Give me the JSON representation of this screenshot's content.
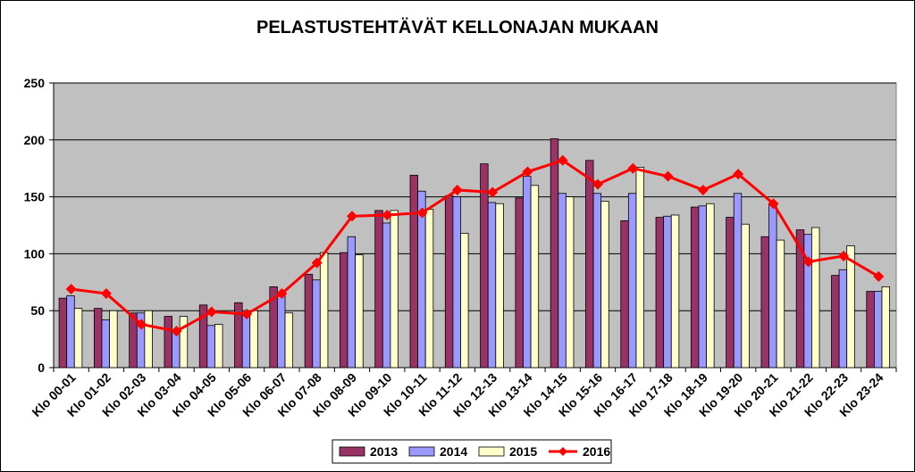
{
  "chart_data": {
    "type": "bar",
    "title": "PELASTUSTEHTÄVÄT KELLONAJAN MUKAAN",
    "xlabel": "",
    "ylabel": "",
    "ylim": [
      0,
      250
    ],
    "yticks": [
      0,
      50,
      100,
      150,
      200,
      250
    ],
    "grid": true,
    "legend_position": "bottom",
    "plot_background": "#c0c0c0",
    "categories": [
      "Klo 00-01",
      "Klo 01-02",
      "Klo 02-03",
      "Klo 03-04",
      "Klo 04-05",
      "Klo 05-06",
      "Klo 06-07",
      "Klo 07-08",
      "Klo 08-09",
      "Klo 09-10",
      "Klo 10-11",
      "Klo 11-12",
      "Klo 12-13",
      "Klo 13-14",
      "Klo 14-15",
      "Klo 15-16",
      "Klo 16-17",
      "Klo 17-18",
      "Klo 18-19",
      "Klo 19-20",
      "Klo 20-21",
      "Klo 21-22",
      "Klo 22-23",
      "Klo 23-24"
    ],
    "series": [
      {
        "name": "2013",
        "kind": "bar",
        "color": "#993366",
        "values": [
          61,
          52,
          48,
          45,
          55,
          57,
          71,
          82,
          101,
          138,
          169,
          151,
          179,
          149,
          201,
          182,
          129,
          132,
          141,
          132,
          115,
          121,
          81,
          67
        ]
      },
      {
        "name": "2014",
        "kind": "bar",
        "color": "#9999ff",
        "values": [
          63,
          42,
          48,
          32,
          37,
          47,
          64,
          77,
          115,
          127,
          155,
          150,
          145,
          168,
          153,
          153,
          153,
          133,
          142,
          153,
          143,
          117,
          86,
          67
        ]
      },
      {
        "name": "2015",
        "kind": "bar",
        "color": "#ffffcc",
        "values": [
          52,
          50,
          50,
          45,
          38,
          50,
          48,
          101,
          99,
          138,
          139,
          118,
          144,
          160,
          150,
          146,
          176,
          134,
          144,
          126,
          112,
          123,
          107,
          71
        ]
      },
      {
        "name": "2016",
        "kind": "line",
        "color": "#ff0000",
        "values": [
          69,
          65,
          38,
          32,
          49,
          47,
          65,
          92,
          133,
          134,
          136,
          156,
          154,
          172,
          182,
          161,
          175,
          168,
          156,
          170,
          144,
          93,
          98,
          80
        ]
      }
    ]
  }
}
